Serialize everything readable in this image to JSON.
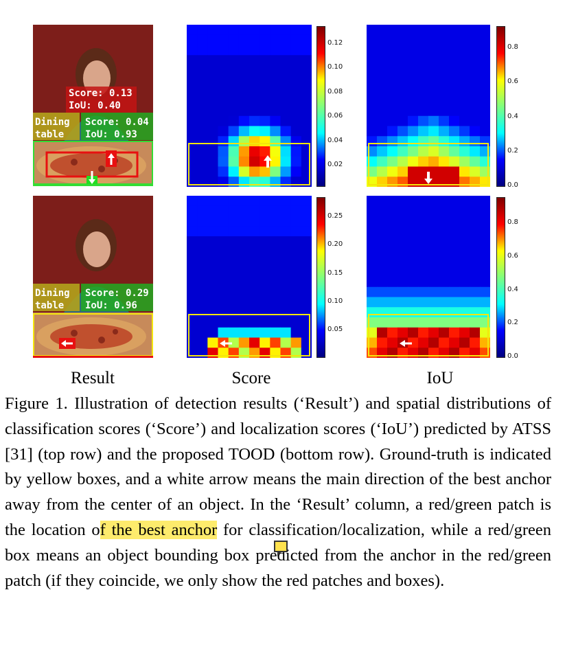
{
  "figure": {
    "columns": [
      "Result",
      "Score",
      "IoU"
    ],
    "rows": [
      {
        "result": {
          "person_label": {
            "line1": "Score: 0.13",
            "line2": "IoU: 0.40"
          },
          "table_label": {
            "line1": "Dining",
            "line2": "table"
          },
          "table_scores": {
            "line1": "Score: 0.04",
            "line2": "IoU: 0.93"
          }
        },
        "score_colorbar": [
          "0.12",
          "0.10",
          "0.08",
          "0.06",
          "0.04",
          "0.02"
        ],
        "iou_colorbar": [
          "0.8",
          "0.6",
          "0.4",
          "0.2",
          "0.0"
        ]
      },
      {
        "result": {
          "table_label": {
            "line1": "Dining",
            "line2": "table"
          },
          "table_scores": {
            "line1": "Score: 0.29",
            "line2": "IoU: 0.96"
          }
        },
        "score_colorbar": [
          "0.25",
          "0.20",
          "0.15",
          "0.10",
          "0.05"
        ],
        "iou_colorbar": [
          "0.8",
          "0.6",
          "0.4",
          "0.2",
          "0.0"
        ]
      }
    ],
    "colors": {
      "ground_truth": "#f4e60c",
      "best_cls": "#e81010",
      "best_loc": "#22dd22"
    }
  },
  "caption": {
    "p1": "Figure 1. Illustration of detection results (‘Result’) and spatial distributions of classification scores (‘Score’) and localization scores (‘IoU’) predicted by ATSS [31] (top row) and the proposed TOOD (bottom row). Ground-truth is indicated by yellow boxes, and a white arrow means the main direction of the best anchor away from the center of an object. In the ‘Result’ column, a red/green patch is the location o",
    "highlight": "f the best anchor",
    "p2": " for classification/localization, while a red/green box means an object bounding box predicted from the anchor in the red/green patch (if they coincide, we only show the red patches and boxes)."
  }
}
